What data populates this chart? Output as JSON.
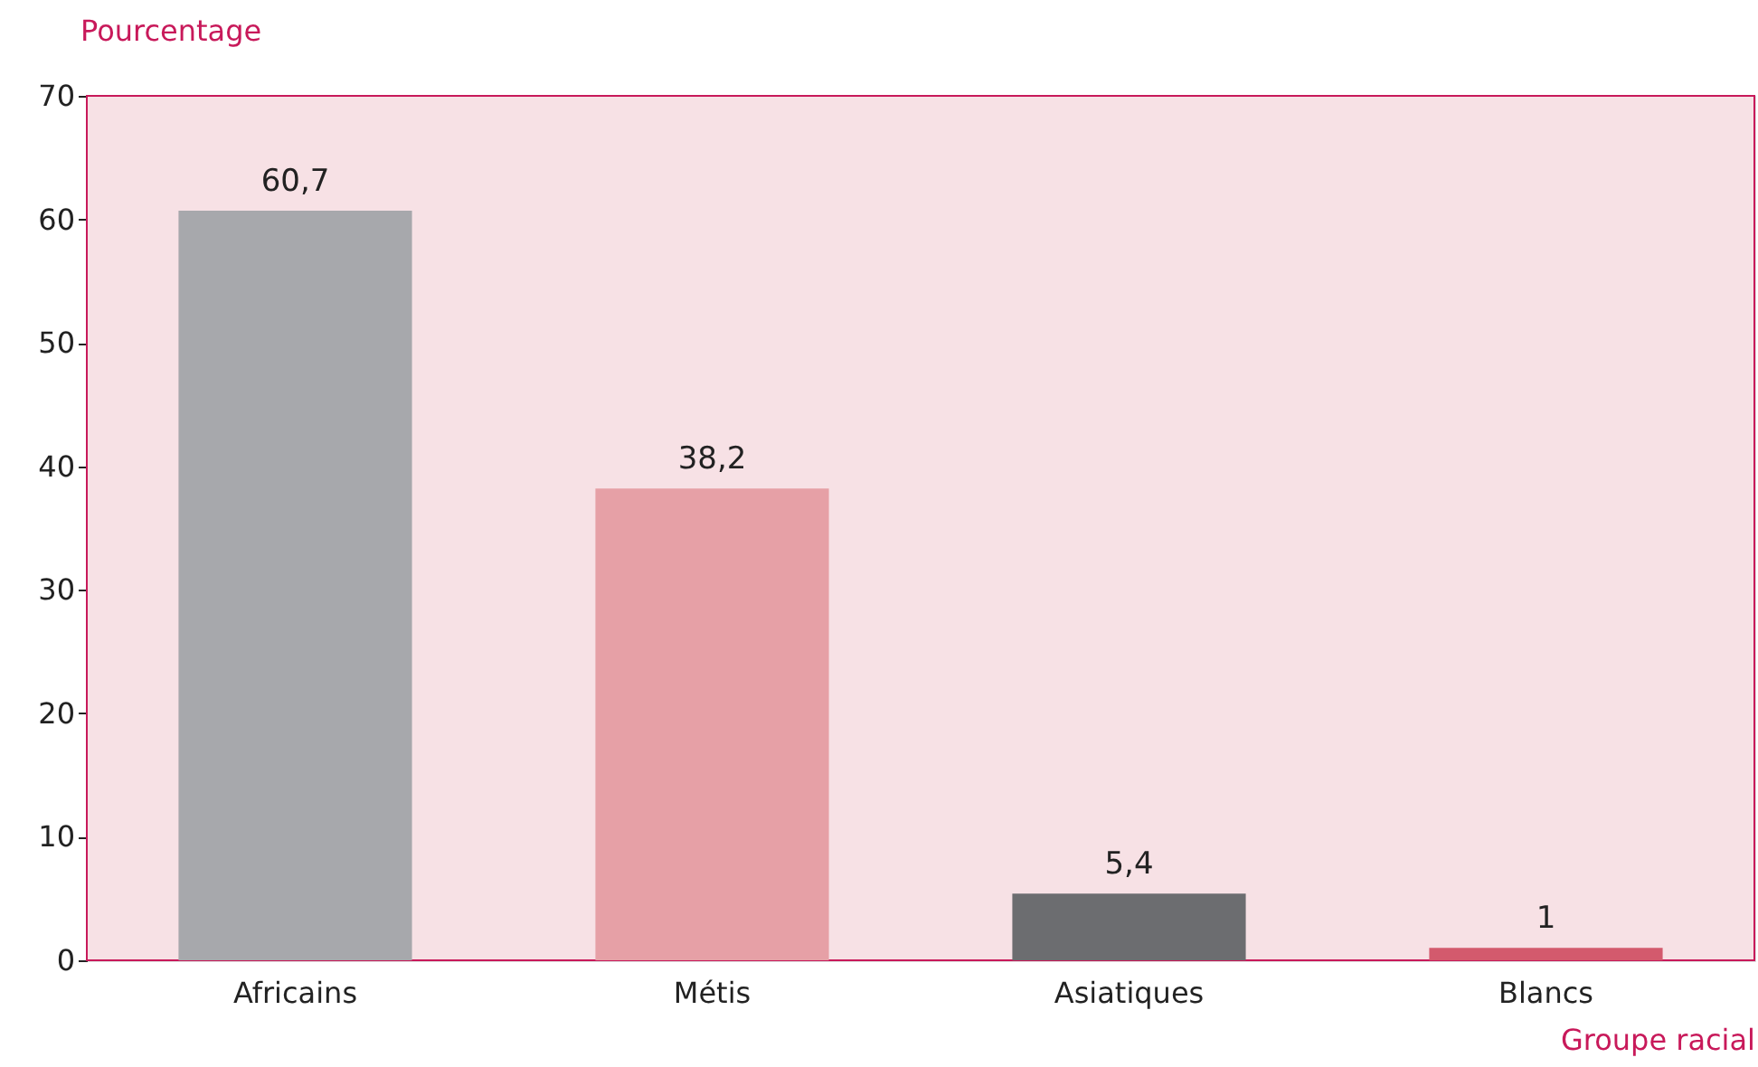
{
  "chart_data": {
    "type": "bar",
    "ylabel": "Pourcentage",
    "xlabel": "Groupe racial",
    "categories": [
      "Africains",
      "Métis",
      "Asiatiques",
      "Blancs"
    ],
    "values": [
      60.7,
      38.2,
      5.4,
      1
    ],
    "colors": [
      "#a7a8ac",
      "#e6a0a6",
      "#6c6d70",
      "#d35a6d"
    ],
    "value_labels": [
      "60,7",
      "38,2",
      "5,4",
      "1"
    ],
    "ylim": [
      0,
      70
    ],
    "yticks": [
      0,
      10,
      20,
      30,
      40,
      50,
      60,
      70
    ],
    "legend": false
  }
}
